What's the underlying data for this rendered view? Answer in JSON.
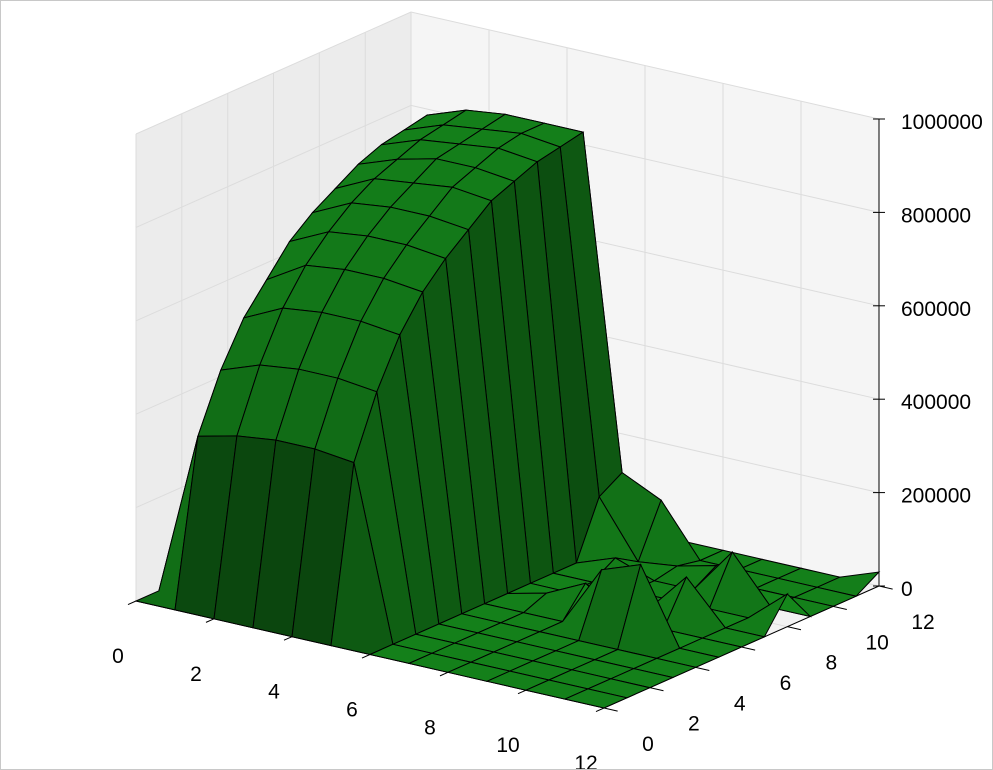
{
  "chart_data": {
    "type": "surface3d",
    "title": "",
    "xlabel": "",
    "ylabel": "",
    "zlabel": "",
    "xlim": [
      0,
      12
    ],
    "ylim": [
      0,
      12
    ],
    "zlim": [
      0,
      1000000
    ],
    "x_ticks": [
      "0",
      "2",
      "4",
      "6",
      "8",
      "10",
      "12"
    ],
    "y_ticks": [
      "0",
      "2",
      "4",
      "6",
      "8",
      "10",
      "12"
    ],
    "z_ticks": [
      "0",
      "200000",
      "400000",
      "600000",
      "800000",
      "1000000"
    ],
    "grid": true,
    "colors": {
      "face": "#14801a",
      "edge": "#000000",
      "pane_side": "#ececec",
      "pane_back": "#f5f5f5",
      "floor": "#f2f2f2",
      "grid": "#dcdcdc"
    },
    "x": [
      0,
      1,
      2,
      3,
      4,
      5,
      6,
      7,
      8,
      9,
      10,
      11,
      12
    ],
    "y": [
      0,
      1,
      2,
      3,
      4,
      5,
      6,
      7,
      8,
      9,
      10,
      11,
      12
    ],
    "z": [
      [
        0,
        0,
        0,
        0,
        0,
        0,
        0,
        0,
        0,
        0,
        0,
        0,
        0
      ],
      [
        0,
        350000,
        470000,
        560000,
        620000,
        680000,
        720000,
        750000,
        780000,
        800000,
        810000,
        820000,
        0
      ],
      [
        0,
        370000,
        500000,
        600000,
        670000,
        720000,
        760000,
        790000,
        810000,
        830000,
        840000,
        850000,
        0
      ],
      [
        0,
        380000,
        510000,
        610000,
        680000,
        730000,
        770000,
        800000,
        830000,
        840000,
        850000,
        860000,
        0
      ],
      [
        0,
        380000,
        510000,
        610000,
        680000,
        730000,
        770000,
        810000,
        830000,
        850000,
        860000,
        860000,
        0
      ],
      [
        0,
        370000,
        500000,
        600000,
        670000,
        720000,
        760000,
        800000,
        820000,
        840000,
        850000,
        860000,
        0
      ],
      [
        0,
        0,
        0,
        0,
        0,
        0,
        0,
        0,
        0,
        0,
        120000,
        150000,
        40000
      ],
      [
        0,
        0,
        0,
        0,
        0,
        0,
        20000,
        0,
        0,
        30000,
        0,
        110000,
        0
      ],
      [
        0,
        0,
        0,
        0,
        0,
        0,
        60000,
        0,
        0,
        0,
        10000,
        0,
        0
      ],
      [
        0,
        0,
        0,
        0,
        0,
        130000,
        0,
        0,
        0,
        0,
        30000,
        0,
        0
      ],
      [
        0,
        0,
        0,
        0,
        0,
        160000,
        0,
        90000,
        0,
        100000,
        0,
        0,
        0
      ],
      [
        0,
        0,
        0,
        0,
        0,
        0,
        0,
        0,
        0,
        0,
        0,
        0,
        0
      ],
      [
        0,
        0,
        0,
        0,
        0,
        0,
        0,
        0,
        70000,
        0,
        0,
        0,
        30000
      ]
    ]
  }
}
